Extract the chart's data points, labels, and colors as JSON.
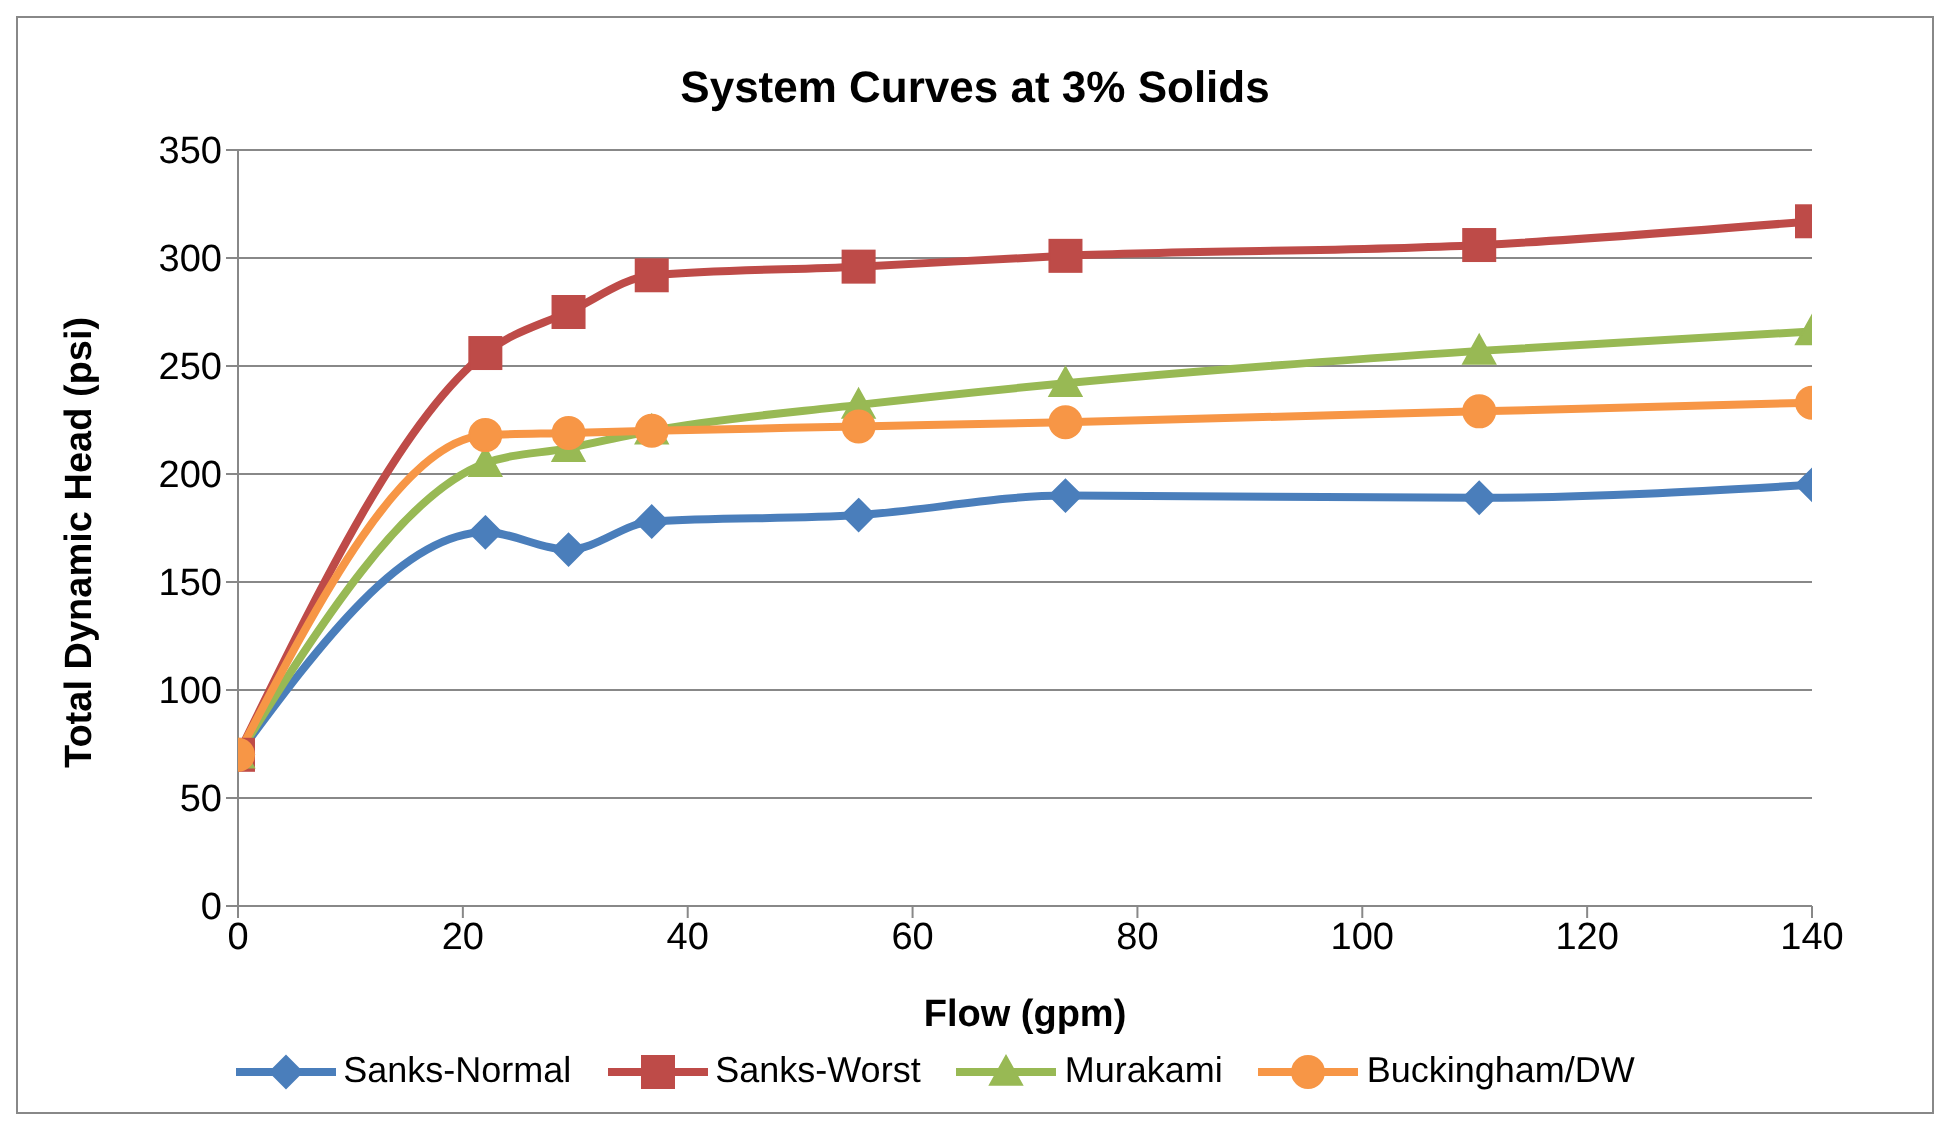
{
  "chart_data": {
    "type": "line",
    "title": "System Curves at 3% Solids",
    "xlabel": "Flow (gpm)",
    "ylabel": "Total Dynamic Head (psi)",
    "xlim": [
      0,
      140
    ],
    "xticks": [
      0,
      20,
      40,
      60,
      80,
      100,
      120,
      140
    ],
    "ylim": [
      0,
      350
    ],
    "yticks": [
      0,
      50,
      100,
      150,
      200,
      250,
      300,
      350
    ],
    "grid": "y",
    "legend": "bottom",
    "x": [
      0,
      22,
      29.4,
      36.8,
      55.2,
      73.6,
      110.4,
      140
    ],
    "series": [
      {
        "name": "Sanks-Normal",
        "color": "#4a7ebb",
        "marker": "diamond",
        "values": [
          70,
          173,
          165,
          178,
          181,
          190,
          189,
          195
        ]
      },
      {
        "name": "Sanks-Worst",
        "color": "#be4b48",
        "marker": "square",
        "values": [
          70,
          256,
          275,
          292,
          296,
          301,
          306,
          317
        ]
      },
      {
        "name": "Murakami",
        "color": "#98b954",
        "marker": "triangle",
        "values": [
          70,
          205,
          212,
          220,
          232,
          242,
          257,
          266
        ]
      },
      {
        "name": "Buckingham/DW",
        "color": "#f79646",
        "marker": "circle",
        "values": [
          70,
          218,
          219,
          220,
          222,
          224,
          229,
          233
        ]
      }
    ]
  }
}
